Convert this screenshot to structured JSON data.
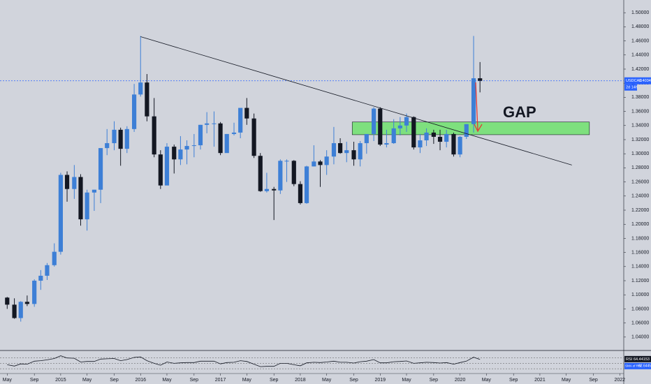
{
  "chart_data": {
    "type": "candlestick",
    "symbol": "USDCAD",
    "countdown": "2d 14h",
    "annotation": "GAP",
    "colors": {
      "up": "#3d7fd6",
      "down": "#131722",
      "price_line": "#2962ff",
      "zone": "#7ee07e",
      "arrow": "#e53935",
      "rsi": "#131722"
    },
    "xlim": [
      2014.24,
      2022.05
    ],
    "ylim": [
      1.023,
      1.518
    ],
    "xticks": [
      {
        "value": 2014.33,
        "label": "May"
      },
      {
        "value": 2014.67,
        "label": "Sep"
      },
      2015,
      {
        "value": 2015.33,
        "label": "May"
      },
      {
        "value": 2015.67,
        "label": "Sep"
      },
      2016,
      {
        "value": 2016.33,
        "label": "May"
      },
      {
        "value": 2016.67,
        "label": "Sep"
      },
      2017,
      {
        "value": 2017.33,
        "label": "May"
      },
      {
        "value": 2017.67,
        "label": "Sep"
      },
      2018,
      {
        "value": 2018.33,
        "label": "May"
      },
      {
        "value": 2018.67,
        "label": "Sep"
      },
      2019,
      {
        "value": 2019.33,
        "label": "May"
      },
      {
        "value": 2019.67,
        "label": "Sep"
      },
      2020,
      {
        "value": 2020.33,
        "label": "May"
      },
      {
        "value": 2020.67,
        "label": "Sep"
      },
      2021,
      {
        "value": 2021.33,
        "label": "May"
      },
      {
        "value": 2021.67,
        "label": "Sep"
      },
      2022
    ],
    "yticks": [
      {
        "value": 1.04,
        "label": "1.04000"
      },
      {
        "value": 1.06,
        "label": "1.06000"
      },
      {
        "value": 1.08,
        "label": "1.08000"
      },
      {
        "value": 1.1,
        "label": "1.10000"
      },
      {
        "value": 1.12,
        "label": "1.12000"
      },
      {
        "value": 1.14,
        "label": "1.14000"
      },
      {
        "value": 1.16,
        "label": "1.16000"
      },
      {
        "value": 1.18,
        "label": "1.18000"
      },
      {
        "value": 1.2,
        "label": "1.20000"
      },
      {
        "value": 1.22,
        "label": "1.22000"
      },
      {
        "value": 1.24,
        "label": "1.24000"
      },
      {
        "value": 1.26,
        "label": "1.26000"
      },
      {
        "value": 1.28,
        "label": "1.28000"
      },
      {
        "value": 1.3,
        "label": "1.30000"
      },
      {
        "value": 1.32,
        "label": "1.32000"
      },
      {
        "value": 1.34,
        "label": "1.34000"
      },
      {
        "value": 1.36,
        "label": "1.36000"
      },
      {
        "value": 1.38,
        "label": "1.38000"
      },
      {
        "value": 1.4,
        "label": "1.40000"
      },
      {
        "value": 1.42,
        "label": "1.42000"
      },
      {
        "value": 1.44,
        "label": "1.44000"
      },
      {
        "value": 1.46,
        "label": "1.46000"
      },
      {
        "value": 1.48,
        "label": "1.48000"
      },
      {
        "value": 1.5,
        "label": "1.50000"
      }
    ],
    "price_line": {
      "value": 1.4034,
      "label": "1.40340"
    },
    "candles": {
      "x": [
        2014.33,
        2014.42,
        2014.5,
        2014.58,
        2014.67,
        2014.75,
        2014.83,
        2014.92,
        2015,
        2015.08,
        2015.17,
        2015.25,
        2015.33,
        2015.42,
        2015.5,
        2015.58,
        2015.67,
        2015.75,
        2015.83,
        2015.92,
        2016,
        2016.08,
        2016.17,
        2016.25,
        2016.33,
        2016.42,
        2016.5,
        2016.58,
        2016.67,
        2016.75,
        2016.83,
        2016.92,
        2017,
        2017.08,
        2017.17,
        2017.25,
        2017.33,
        2017.42,
        2017.5,
        2017.58,
        2017.67,
        2017.75,
        2017.83,
        2017.92,
        2018,
        2018.08,
        2018.17,
        2018.25,
        2018.33,
        2018.42,
        2018.5,
        2018.58,
        2018.67,
        2018.75,
        2018.83,
        2018.92,
        2019,
        2019.08,
        2019.17,
        2019.25,
        2019.33,
        2019.42,
        2019.5,
        2019.58,
        2019.67,
        2019.75,
        2019.83,
        2019.92,
        2020,
        2020.08,
        2020.17,
        2020.25
      ],
      "open": [
        1.096,
        1.086,
        1.067,
        1.09,
        1.087,
        1.12,
        1.127,
        1.142,
        1.161,
        1.27,
        1.25,
        1.267,
        1.207,
        1.245,
        1.249,
        1.308,
        1.315,
        1.334,
        1.307,
        1.335,
        1.384,
        1.401,
        1.353,
        1.299,
        1.255,
        1.31,
        1.292,
        1.306,
        1.311,
        1.312,
        1.341,
        1.343,
        1.343,
        1.301,
        1.328,
        1.33,
        1.365,
        1.35,
        1.297,
        1.247,
        1.25,
        1.248,
        1.29,
        1.29,
        1.257,
        1.23,
        1.282,
        1.289,
        1.284,
        1.296,
        1.315,
        1.301,
        1.305,
        1.292,
        1.315,
        1.328,
        1.364,
        1.313,
        1.315,
        1.336,
        1.34,
        1.352,
        1.309,
        1.319,
        1.33,
        1.324,
        1.317,
        1.328,
        1.299,
        1.324,
        1.342,
        1.407
      ],
      "high": [
        1.097,
        1.095,
        1.091,
        1.099,
        1.122,
        1.135,
        1.145,
        1.173,
        1.273,
        1.275,
        1.284,
        1.271,
        1.249,
        1.249,
        1.308,
        1.335,
        1.346,
        1.337,
        1.339,
        1.399,
        1.467,
        1.413,
        1.379,
        1.305,
        1.315,
        1.313,
        1.325,
        1.319,
        1.328,
        1.341,
        1.359,
        1.36,
        1.345,
        1.328,
        1.344,
        1.364,
        1.379,
        1.357,
        1.301,
        1.273,
        1.253,
        1.292,
        1.292,
        1.291,
        1.261,
        1.283,
        1.312,
        1.291,
        1.305,
        1.338,
        1.322,
        1.317,
        1.317,
        1.318,
        1.327,
        1.366,
        1.366,
        1.334,
        1.349,
        1.352,
        1.357,
        1.353,
        1.328,
        1.336,
        1.334,
        1.334,
        1.334,
        1.33,
        1.325,
        1.342,
        1.467,
        1.43
      ],
      "low": [
        1.08,
        1.066,
        1.062,
        1.084,
        1.083,
        1.107,
        1.121,
        1.14,
        1.157,
        1.232,
        1.236,
        1.198,
        1.191,
        1.219,
        1.23,
        1.298,
        1.305,
        1.283,
        1.301,
        1.331,
        1.381,
        1.346,
        1.295,
        1.25,
        1.256,
        1.272,
        1.284,
        1.285,
        1.295,
        1.306,
        1.329,
        1.31,
        1.298,
        1.303,
        1.326,
        1.322,
        1.341,
        1.294,
        1.246,
        1.245,
        1.206,
        1.243,
        1.26,
        1.254,
        1.228,
        1.229,
        1.282,
        1.253,
        1.27,
        1.285,
        1.3,
        1.288,
        1.283,
        1.282,
        1.3,
        1.318,
        1.311,
        1.309,
        1.314,
        1.326,
        1.331,
        1.306,
        1.301,
        1.311,
        1.314,
        1.305,
        1.309,
        1.296,
        1.295,
        1.321,
        1.33,
        1.387
      ],
      "close": [
        1.086,
        1.067,
        1.09,
        1.087,
        1.12,
        1.127,
        1.142,
        1.161,
        1.27,
        1.25,
        1.267,
        1.207,
        1.245,
        1.249,
        1.308,
        1.315,
        1.334,
        1.307,
        1.335,
        1.384,
        1.401,
        1.353,
        1.299,
        1.255,
        1.31,
        1.292,
        1.306,
        1.311,
        1.312,
        1.341,
        1.343,
        1.343,
        1.301,
        1.328,
        1.33,
        1.365,
        1.35,
        1.297,
        1.247,
        1.25,
        1.248,
        1.29,
        1.29,
        1.257,
        1.23,
        1.282,
        1.289,
        1.284,
        1.296,
        1.315,
        1.301,
        1.305,
        1.292,
        1.315,
        1.328,
        1.364,
        1.313,
        1.315,
        1.336,
        1.34,
        1.352,
        1.309,
        1.319,
        1.33,
        1.324,
        1.317,
        1.328,
        1.299,
        1.324,
        1.342,
        1.407,
        1.4034
      ]
    },
    "trendline": {
      "x": [
        2016.0,
        2021.4
      ],
      "y": [
        1.466,
        1.284
      ]
    },
    "zone": {
      "x": [
        2018.65,
        2021.62
      ],
      "y": [
        1.327,
        1.345
      ]
    },
    "rsi": {
      "name": "RSI",
      "value_label": "64.44153",
      "sma_name": "SMA of RSI",
      "sma_label": "62.64450",
      "ylim": [
        20,
        90
      ],
      "levels": [
        30,
        50,
        70
      ],
      "values": [
        45,
        40,
        48,
        47,
        58,
        60,
        63,
        68,
        78,
        70,
        69,
        55,
        57,
        57,
        66,
        67,
        68,
        60,
        64,
        72,
        74,
        60,
        50,
        43,
        55,
        50,
        52,
        53,
        53,
        58,
        58,
        58,
        48,
        53,
        54,
        60,
        57,
        47,
        38,
        39,
        39,
        50,
        50,
        45,
        41,
        52,
        54,
        53,
        55,
        58,
        54,
        54,
        51,
        56,
        58,
        64,
        52,
        52,
        56,
        57,
        59,
        50,
        52,
        54,
        53,
        51,
        53,
        47,
        53,
        58,
        73,
        64.44
      ]
    }
  }
}
